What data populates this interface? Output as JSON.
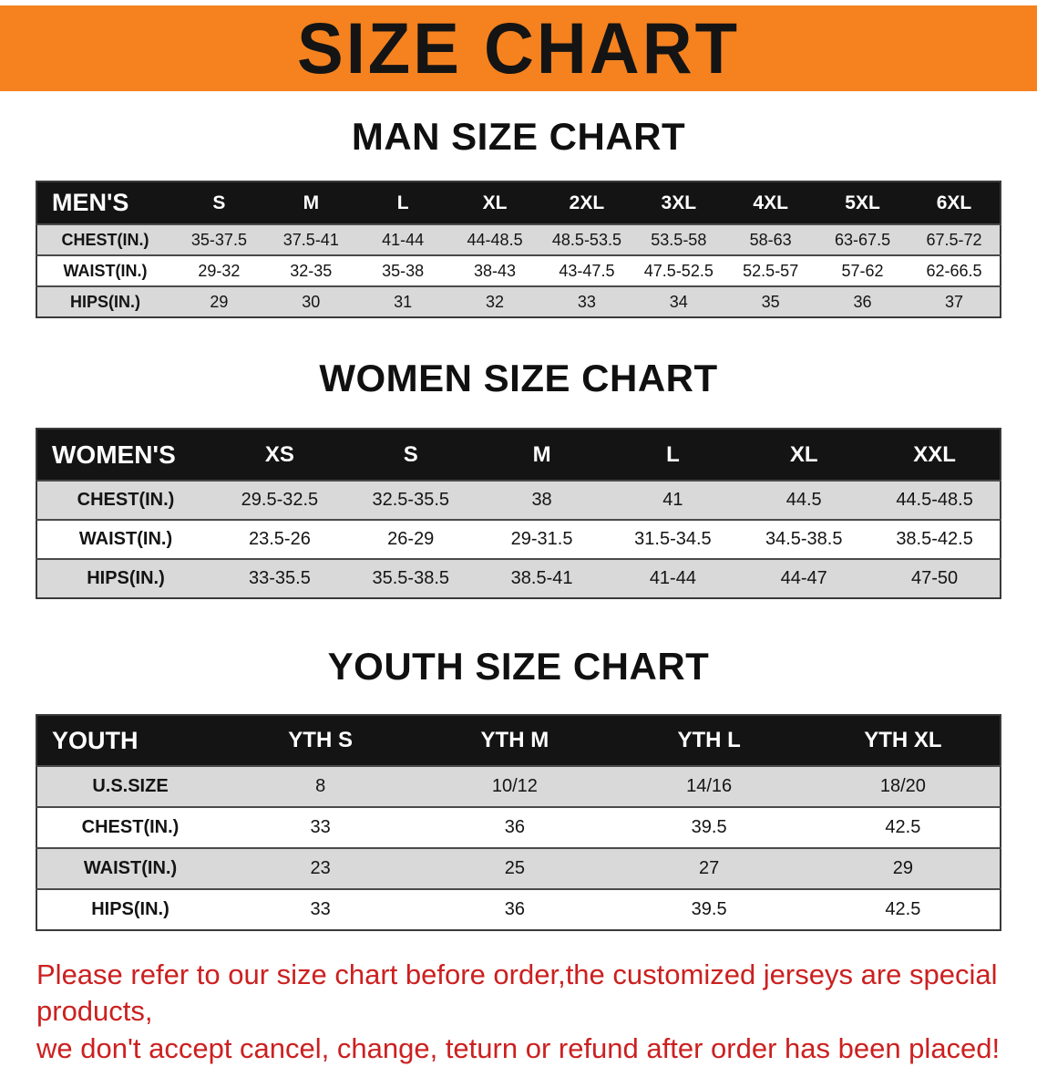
{
  "banner": {
    "title": "SIZE CHART",
    "bg_color": "#F5821F",
    "text_color": "#141414"
  },
  "sections": [
    {
      "id": "men",
      "heading": "MAN SIZE CHART",
      "table": {
        "header": [
          "MEN'S",
          "S",
          "M",
          "L",
          "XL",
          "2XL",
          "3XL",
          "4XL",
          "5XL",
          "6XL"
        ],
        "rows": [
          [
            "CHEST(IN.)",
            "35-37.5",
            "37.5-41",
            "41-44",
            "44-48.5",
            "48.5-53.5",
            "53.5-58",
            "58-63",
            "63-67.5",
            "67.5-72"
          ],
          [
            "WAIST(IN.)",
            "29-32",
            "32-35",
            "35-38",
            "38-43",
            "43-47.5",
            "47.5-52.5",
            "52.5-57",
            "57-62",
            "62-66.5"
          ],
          [
            "HIPS(IN.)",
            "29",
            "30",
            "31",
            "32",
            "33",
            "34",
            "35",
            "36",
            "37"
          ]
        ]
      }
    },
    {
      "id": "women",
      "heading": "WOMEN SIZE CHART",
      "table": {
        "header": [
          "WOMEN'S",
          "XS",
          "S",
          "M",
          "L",
          "XL",
          "XXL"
        ],
        "rows": [
          [
            "CHEST(IN.)",
            "29.5-32.5",
            "32.5-35.5",
            "38",
            "41",
            "44.5",
            "44.5-48.5"
          ],
          [
            "WAIST(IN.)",
            "23.5-26",
            "26-29",
            "29-31.5",
            "31.5-34.5",
            "34.5-38.5",
            "38.5-42.5"
          ],
          [
            "HIPS(IN.)",
            "33-35.5",
            "35.5-38.5",
            "38.5-41",
            "41-44",
            "44-47",
            "47-50"
          ]
        ]
      }
    },
    {
      "id": "youth",
      "heading": "YOUTH SIZE CHART",
      "table": {
        "header": [
          "YOUTH",
          "YTH S",
          "YTH M",
          "YTH L",
          "YTH XL"
        ],
        "rows": [
          [
            "U.S.SIZE",
            "8",
            "10/12",
            "14/16",
            "18/20"
          ],
          [
            "CHEST(IN.)",
            "33",
            "36",
            "39.5",
            "42.5"
          ],
          [
            "WAIST(IN.)",
            "23",
            "25",
            "27",
            "29"
          ],
          [
            "HIPS(IN.)",
            "33",
            "36",
            "39.5",
            "42.5"
          ]
        ]
      }
    }
  ],
  "disclaimer": {
    "lines": [
      "Please refer to our size chart before order,the customized jerseys are special products,",
      "we don't accept cancel, change, teturn or refund after order has been placed!"
    ],
    "color": "#CC2020"
  },
  "colors": {
    "table_header_bg": "#141414",
    "row_stripe": "#D9D9D9",
    "table_border": "#3A3A3A",
    "banner_orange": "#F5821F"
  }
}
